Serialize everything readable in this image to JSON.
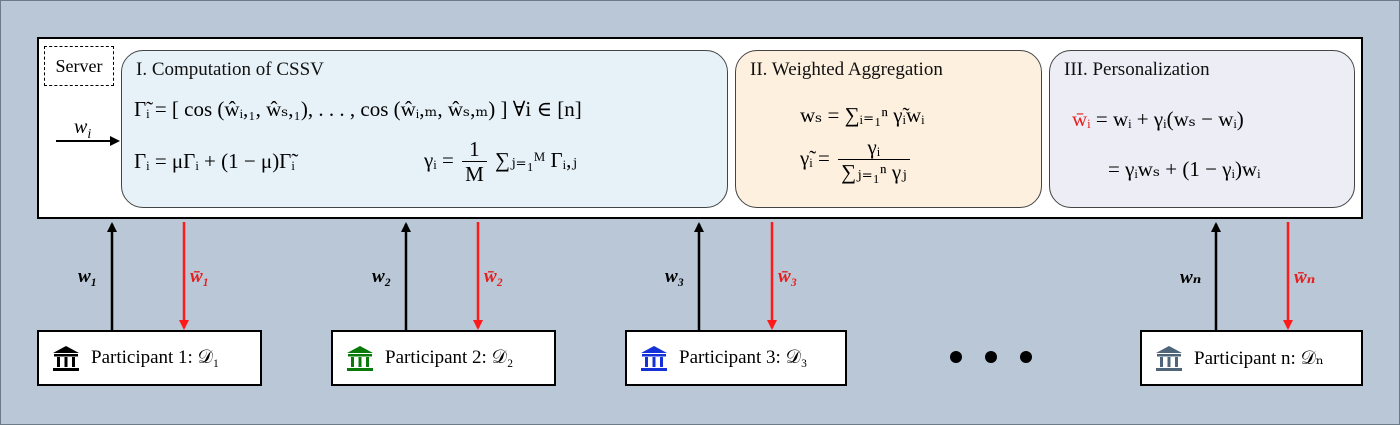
{
  "server": {
    "tag": "Server",
    "incoming_label": "w",
    "incoming_sub": "i"
  },
  "panels": {
    "cssv": {
      "title": "I. Computation of CSSV",
      "eq1": "Γ̃ᵢ = [ cos (ŵᵢ,₁, ŵₛ,₁), . . . , cos (ŵᵢ,ₘ, ŵₛ,ₘ) ]   ∀i ∈ [n]",
      "eq2_left": "Γᵢ = μΓᵢ + (1 − μ)Γ̃ᵢ",
      "eq2_right_lhs": "γᵢ =",
      "eq2_right_num": "1",
      "eq2_right_den": "M",
      "eq2_right_sum": "∑ⱼ₌₁ᴹ Γᵢ,ⱼ"
    },
    "agg": {
      "title": "II. Weighted Aggregation",
      "eq1": "wₛ = ∑ᵢ₌₁ⁿ γ̃ᵢwᵢ",
      "eq2_lhs": "γ̃ᵢ =",
      "eq2_num": "γᵢ",
      "eq2_den": "∑ⱼ₌₁ⁿ γⱼ"
    },
    "pers": {
      "title": "III. Personalization",
      "eq1_lhs": "w̄ᵢ",
      "eq1_rhs": "= wᵢ + γᵢ(wₛ − wᵢ)",
      "eq2": "= γᵢwₛ + (1 − γᵢ)wᵢ"
    }
  },
  "participants": [
    {
      "label": "Participant 1: 𝒟₁",
      "up": "w₁",
      "down": "w̄₁",
      "icon_color": "#000000"
    },
    {
      "label": "Participant 2: 𝒟₂",
      "up": "w₂",
      "down": "w̄₂",
      "icon_color": "#0a7a0a"
    },
    {
      "label": "Participant 3: 𝒟₃",
      "up": "w₃",
      "down": "w̄₃",
      "icon_color": "#1430d8"
    },
    {
      "label": "Participant n: 𝒟ₙ",
      "up": "wₙ",
      "down": "w̄ₙ",
      "icon_color": "#4e6478"
    }
  ],
  "colors": {
    "background": "#b9c7d6",
    "arrow_up": "#000000",
    "arrow_down": "#ff1a1a",
    "panel_cssv": "#e6f2f8",
    "panel_agg": "#fdf0df",
    "panel_pers": "#ecedf5"
  }
}
